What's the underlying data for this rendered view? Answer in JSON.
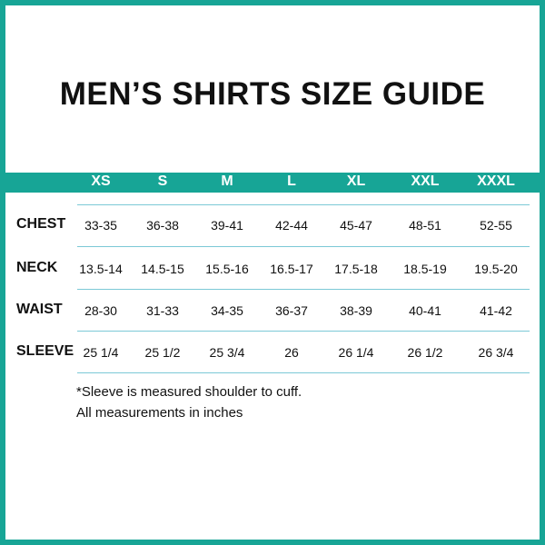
{
  "title": "MEN’S SHIRTS SIZE GUIDE",
  "sizes": [
    "XS",
    "S",
    "M",
    "L",
    "XL",
    "XXL",
    "XXXL"
  ],
  "rows": [
    {
      "label": "CHEST",
      "values": [
        "33-35",
        "36-38",
        "39-41",
        "42-44",
        "45-47",
        "48-51",
        "52-55"
      ]
    },
    {
      "label": "NECK",
      "values": [
        "13.5-14",
        "14.5-15",
        "15.5-16",
        "16.5-17",
        "17.5-18",
        "18.5-19",
        "19.5-20"
      ]
    },
    {
      "label": "WAIST",
      "values": [
        "28-30",
        "31-33",
        "34-35",
        "36-37",
        "38-39",
        "40-41",
        "41-42"
      ]
    },
    {
      "label": "SLEEVE",
      "values": [
        "25 1/4",
        "25 1/2",
        "25 3/4",
        "26",
        "26 1/4",
        "26 1/2",
        "26 3/4"
      ]
    }
  ],
  "notes": [
    "*Sleeve is measured shoulder to cuff.",
    "All measurements in inches"
  ],
  "colors": {
    "accent": "#17a596",
    "divider": "#7cc9d6"
  }
}
